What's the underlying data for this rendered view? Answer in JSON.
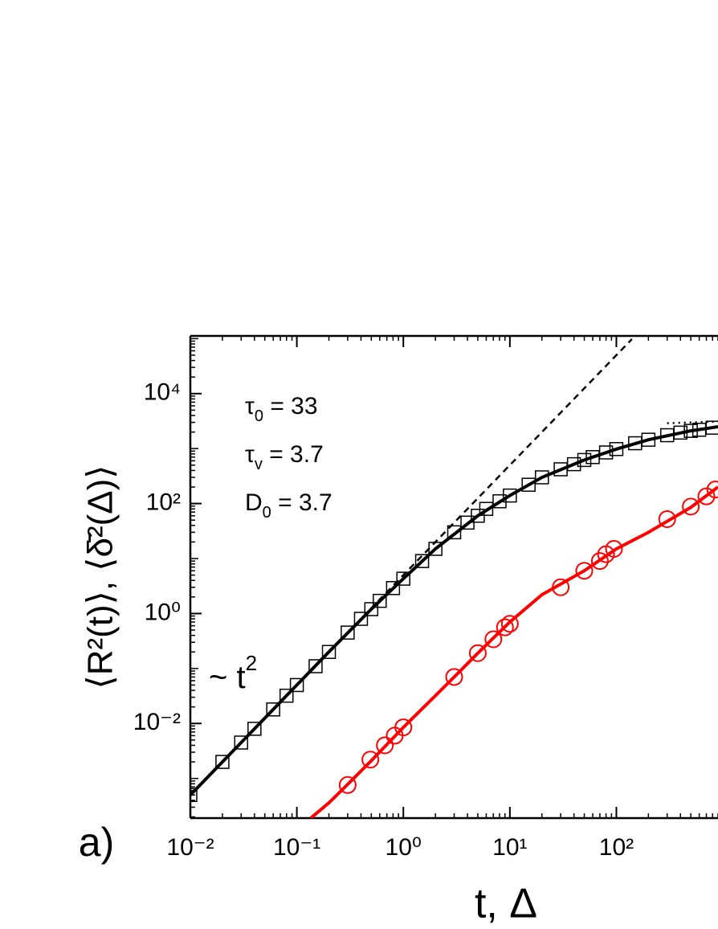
{
  "chart_data": {
    "type": "scatter",
    "panel_label": "a)",
    "x_label": "t, Δ",
    "y_label": "⟨R²(t)⟩,  ⟨δ̄²(Δ)⟩",
    "log_x": true,
    "log_y": true,
    "xlim": [
      0.01,
      900
    ],
    "ylim": [
      0.00019,
      112000
    ],
    "xticks": [
      {
        "value": 0.01,
        "label": "10⁻²"
      },
      {
        "value": 0.1,
        "label": "10⁻¹"
      },
      {
        "value": 1,
        "label": "10⁰"
      },
      {
        "value": 10,
        "label": "10¹"
      },
      {
        "value": 100,
        "label": "10²"
      }
    ],
    "yticks": [
      {
        "value": 0.01,
        "label": "10⁻²"
      },
      {
        "value": 1,
        "label": "10⁰"
      },
      {
        "value": 100,
        "label": "10²"
      },
      {
        "value": 10000,
        "label": "10⁴"
      }
    ],
    "annotations": [
      {
        "symbol": "τ",
        "sub": "0",
        "rest": " = 33"
      },
      {
        "symbol": "τ",
        "sub": "v",
        "rest": " = 3.7"
      },
      {
        "symbol": "D",
        "sub": "0",
        "rest": " = 3.7"
      }
    ],
    "slope_label": {
      "text": "~ t",
      "sup": "2"
    },
    "series": [
      {
        "marker": "square",
        "color": "#000000",
        "x": [
          0.01,
          0.02,
          0.03,
          0.04,
          0.06,
          0.08,
          0.1,
          0.15,
          0.2,
          0.3,
          0.4,
          0.5,
          0.6,
          0.8,
          1,
          1.5,
          2,
          3,
          4,
          5,
          6,
          8,
          10,
          15,
          20,
          30,
          40,
          50,
          60,
          80,
          100,
          150,
          200,
          300,
          400,
          500,
          600,
          800
        ],
        "values": [
          0.0005,
          0.002,
          0.0045,
          0.008,
          0.018,
          0.032,
          0.05,
          0.11,
          0.2,
          0.45,
          0.8,
          1.2,
          1.7,
          2.9,
          4.3,
          9,
          15,
          30,
          45,
          60,
          80,
          110,
          140,
          220,
          300,
          420,
          520,
          620,
          700,
          850,
          980,
          1250,
          1450,
          1750,
          1950,
          2100,
          2200,
          2400
        ]
      },
      {
        "marker": "circle",
        "color": "#ff0000",
        "x": [
          0.3,
          0.49,
          0.67,
          0.83,
          1,
          3,
          5,
          7,
          9,
          10,
          30,
          50,
          70,
          80,
          95,
          300,
          500,
          700,
          850
        ],
        "values": [
          0.00076,
          0.0022,
          0.004,
          0.006,
          0.0085,
          0.07,
          0.19,
          0.34,
          0.56,
          0.65,
          3,
          6,
          9,
          12,
          15,
          52,
          88,
          135,
          180
        ]
      }
    ],
    "lines": [
      {
        "style": "solid",
        "color": "#000000",
        "x": [
          0.01,
          0.02,
          0.05,
          0.1,
          0.2,
          0.5,
          1,
          2,
          5,
          10,
          20,
          50,
          100,
          200,
          500,
          900
        ],
        "values": [
          0.0005,
          0.002,
          0.0125,
          0.05,
          0.2,
          1.2,
          4.3,
          15,
          60,
          140,
          300,
          620,
          980,
          1450,
          2100,
          2500
        ]
      },
      {
        "style": "dashed",
        "color": "#000000",
        "x": [
          0.01,
          140
        ],
        "values": [
          0.0005,
          98000
        ]
      },
      {
        "style": "dotted",
        "color": "#000000",
        "x": [
          300,
          900
        ],
        "values": [
          2900,
          3100
        ]
      },
      {
        "style": "solid",
        "color": "#ff0000",
        "x": [
          0.135,
          0.2,
          0.3,
          0.5,
          1,
          2,
          3,
          5,
          10,
          20,
          50,
          100,
          200,
          500,
          900
        ],
        "values": [
          0.00019,
          0.00036,
          0.00078,
          0.0021,
          0.0085,
          0.032,
          0.07,
          0.19,
          0.7,
          2.2,
          6,
          15,
          30,
          85,
          200
        ]
      }
    ]
  }
}
